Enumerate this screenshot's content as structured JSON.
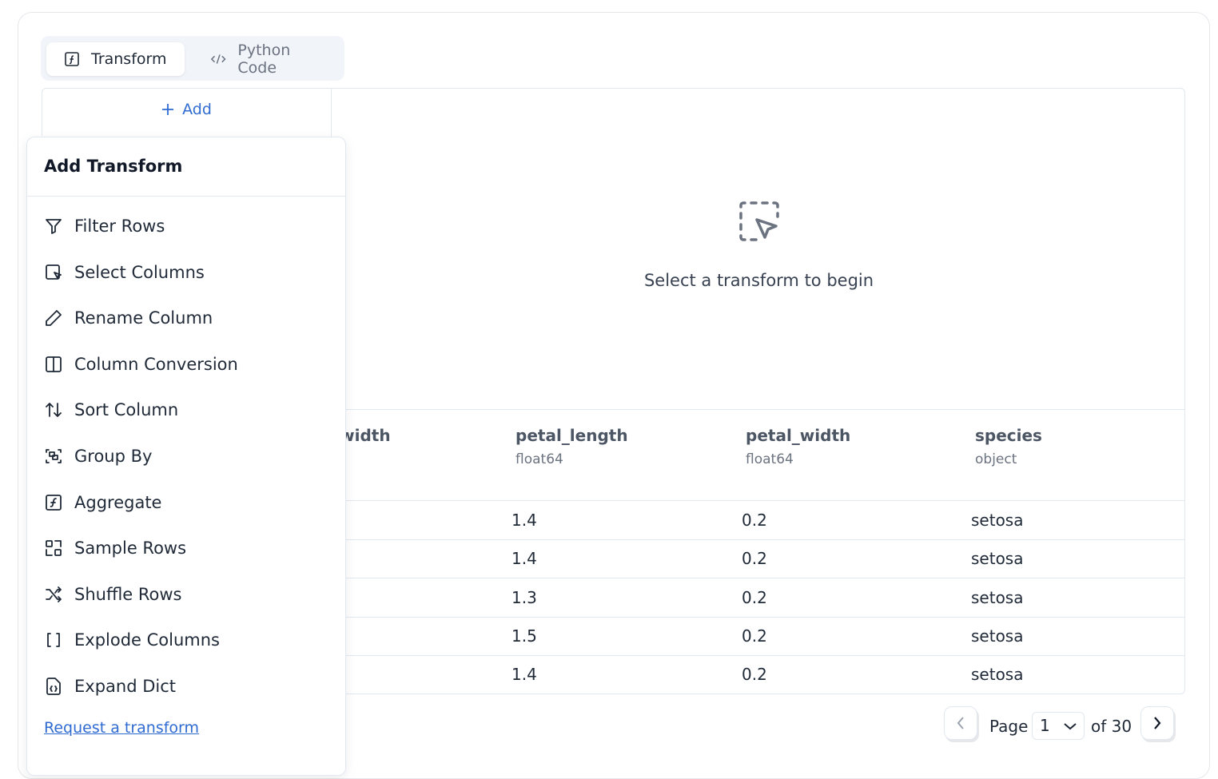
{
  "tabs": [
    {
      "label": "Transform",
      "icon": "function-square-icon",
      "active": true
    },
    {
      "label": "Python Code",
      "icon": "code-icon",
      "active": false
    }
  ],
  "add_button": "Add",
  "empty_state": "Select a transform to begin",
  "table": {
    "columns": [
      {
        "name": "sepal_width",
        "type": ""
      },
      {
        "name": "petal_length",
        "type": "float64"
      },
      {
        "name": "petal_width",
        "type": "float64"
      },
      {
        "name": "species",
        "type": "object"
      }
    ],
    "rows": [
      [
        "1.4",
        "0.2",
        "setosa"
      ],
      [
        "1.4",
        "0.2",
        "setosa"
      ],
      [
        "1.3",
        "0.2",
        "setosa"
      ],
      [
        "1.5",
        "0.2",
        "setosa"
      ],
      [
        "1.4",
        "0.2",
        "setosa"
      ]
    ]
  },
  "dropdown": {
    "title": "Add Transform",
    "items": [
      "Filter Rows",
      "Select Columns",
      "Rename Column",
      "Column Conversion",
      "Sort Column",
      "Group By",
      "Aggregate",
      "Sample Rows",
      "Shuffle Rows",
      "Explode Columns",
      "Expand Dict"
    ],
    "request_link": "Request a transform"
  },
  "pagination": {
    "page_label": "Page",
    "current": "1",
    "of_label": "of 30"
  },
  "colors": {
    "accent": "#2f6bd1",
    "border": "#e2e8f0"
  }
}
